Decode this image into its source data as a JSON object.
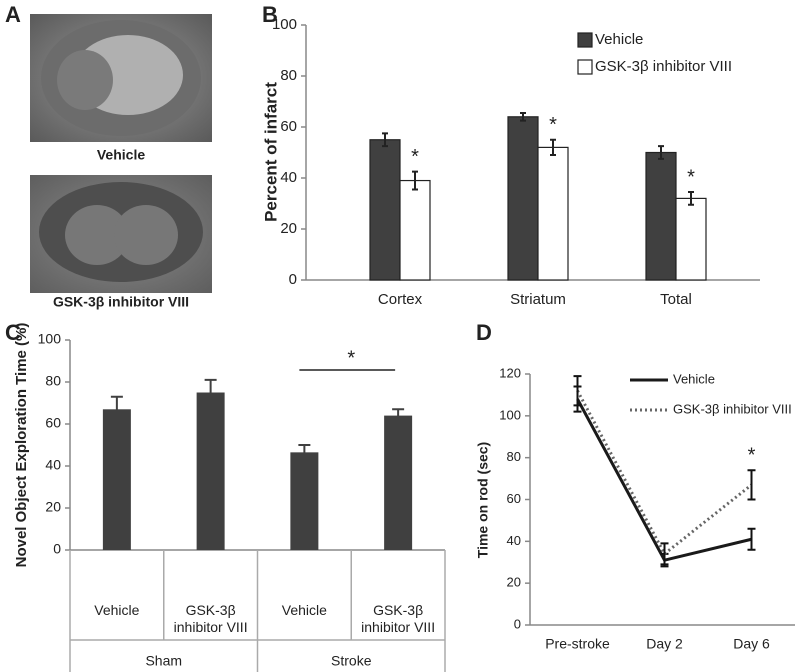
{
  "figure": {
    "panel_a": {
      "panel": "A",
      "captions": [
        "Vehicle",
        "GSK-3β inhibitor VIII"
      ]
    }
  },
  "chart_data": [
    {
      "type": "bar",
      "panel": "B",
      "ylabel": "Percent of infarct",
      "categories": [
        "Cortex",
        "Striatum",
        "Total"
      ],
      "series": [
        {
          "name": "Vehicle",
          "color": "#404040",
          "values": [
            55,
            64,
            50
          ],
          "errors": [
            2.5,
            1.5,
            2.5
          ]
        },
        {
          "name": "GSK-3β inhibitor VIII",
          "color": "#ffffff",
          "values": [
            39,
            52,
            32
          ],
          "errors": [
            3.5,
            3,
            2.5
          ]
        }
      ],
      "annotations": [
        "*",
        "*",
        "*"
      ],
      "ylim": [
        0,
        100
      ],
      "yticks": [
        0,
        20,
        40,
        60,
        80,
        100
      ],
      "legend": "upper right"
    },
    {
      "type": "bar",
      "panel": "C",
      "ylabel": "Novel Object Exploration Time (%)",
      "categories": [
        "Vehicle",
        "GSK-3β inhibitor VIII",
        "Vehicle",
        "GSK-3β inhibitor VIII"
      ],
      "groups": [
        "Sham",
        "Stroke"
      ],
      "values": [
        67,
        75,
        46.5,
        64
      ],
      "errors": [
        6,
        6,
        3.5,
        3
      ],
      "color": "#404040",
      "annotation": "*",
      "ylim": [
        0,
        100
      ],
      "yticks": [
        0,
        20,
        40,
        60,
        80,
        100
      ]
    },
    {
      "type": "line",
      "panel": "D",
      "ylabel": "Time on rod (sec)",
      "categories": [
        "Pre-stroke",
        "Day 2",
        "Day 6"
      ],
      "series": [
        {
          "name": "Vehicle",
          "color": "#1a1a1a",
          "style": "solid",
          "values": [
            108,
            31,
            41
          ],
          "errors": [
            6,
            3,
            5
          ]
        },
        {
          "name": "GSK-3β inhibitor VIII",
          "color": "#666666",
          "style": "dotted",
          "values": [
            112,
            34,
            67
          ],
          "errors": [
            7,
            5,
            7
          ]
        }
      ],
      "annotation": "*",
      "ylim": [
        0,
        120
      ],
      "yticks": [
        0,
        20,
        40,
        60,
        80,
        100,
        120
      ],
      "legend": "upper right"
    }
  ]
}
